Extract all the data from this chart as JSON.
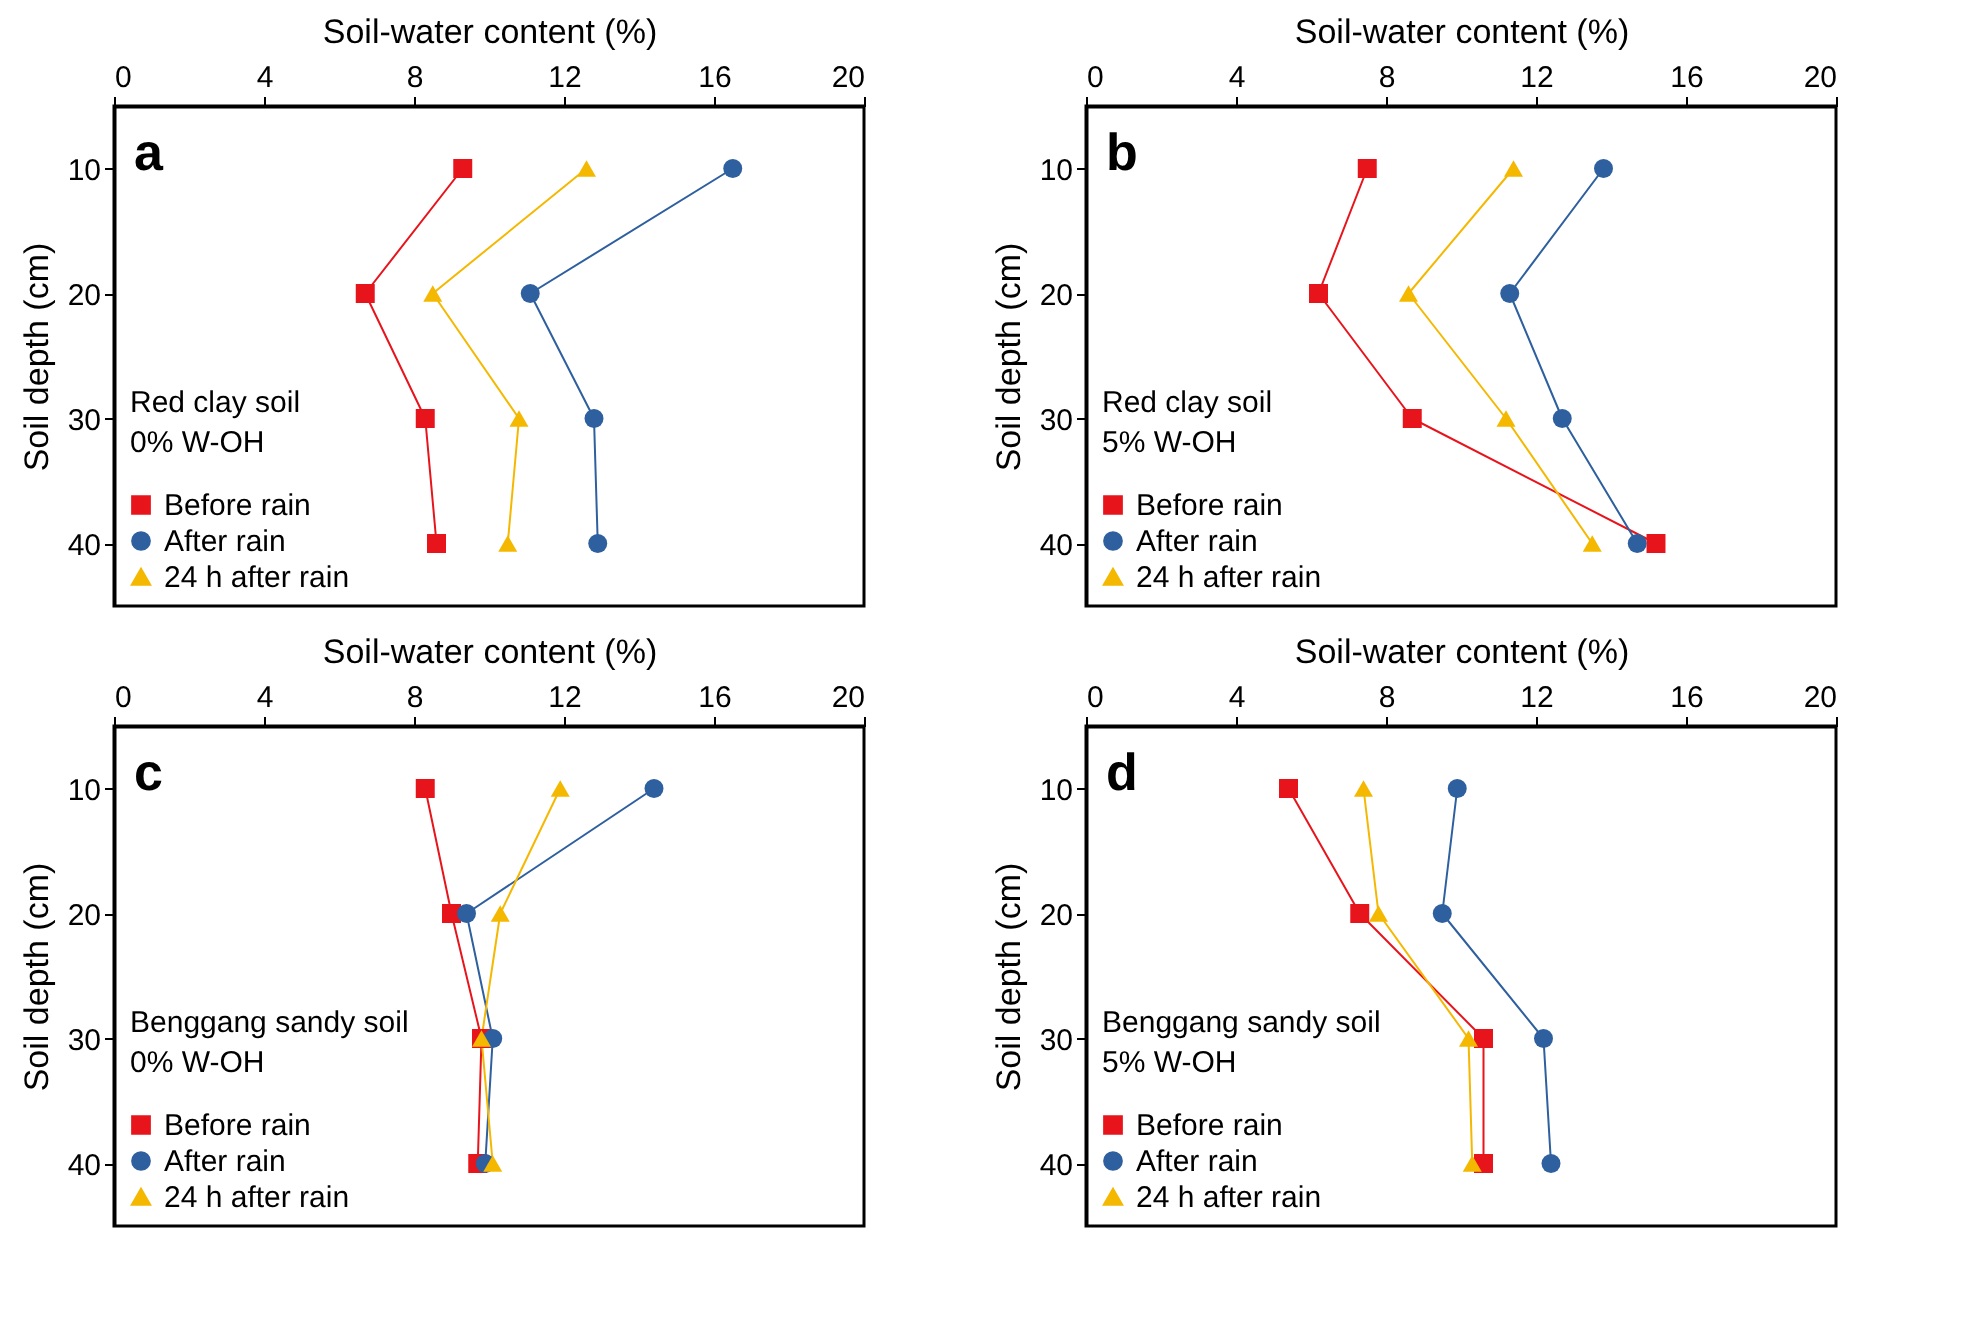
{
  "chart_data": [
    {
      "type": "line",
      "xlabel": "Soil-water content (%)",
      "ylabel": "Soil depth (cm)",
      "annotations": [
        "a",
        "Red clay soil",
        "0% W-OH"
      ],
      "xlim": [
        0,
        20
      ],
      "ylim": [
        45,
        5
      ],
      "xticks": [
        0,
        4,
        8,
        12,
        16,
        20
      ],
      "yticks": [
        10,
        20,
        30,
        40
      ],
      "grid": false,
      "legend": "bottom left",
      "line_style": "solid",
      "series": [
        {
          "name": "Before rain",
          "color": "#e8141c",
          "marker": "square",
          "x": [
            9.3,
            6.7,
            8.3,
            8.6
          ],
          "values": [
            10,
            20,
            30,
            40
          ]
        },
        {
          "name": "After rain",
          "color": "#2e5f9e",
          "marker": "circle",
          "x": [
            16.5,
            11.1,
            12.8,
            12.9
          ],
          "values": [
            10,
            20,
            30,
            40
          ]
        },
        {
          "name": "24 h after rain",
          "color": "#f5b800",
          "marker": "triangle",
          "x": [
            12.6,
            8.5,
            10.8,
            10.5
          ],
          "values": [
            10,
            20,
            30,
            40
          ]
        }
      ]
    },
    {
      "type": "line",
      "xlabel": "Soil-water content (%)",
      "ylabel": "Soil depth (cm)",
      "annotations": [
        "b",
        "Red clay soil",
        "5% W-OH"
      ],
      "xlim": [
        0,
        20
      ],
      "ylim": [
        45,
        5
      ],
      "xticks": [
        0,
        4,
        8,
        12,
        16,
        20
      ],
      "yticks": [
        10,
        20,
        30,
        40
      ],
      "grid": false,
      "legend": "bottom left",
      "line_style": "solid",
      "series": [
        {
          "name": "Before rain",
          "color": "#e8141c",
          "marker": "square",
          "x": [
            7.5,
            6.2,
            8.7,
            15.2
          ],
          "values": [
            10,
            20,
            30,
            40
          ]
        },
        {
          "name": "After rain",
          "color": "#2e5f9e",
          "marker": "circle",
          "x": [
            13.8,
            11.3,
            12.7,
            14.7
          ],
          "values": [
            10,
            20,
            30,
            40
          ]
        },
        {
          "name": "24 h after rain",
          "color": "#f5b800",
          "marker": "triangle",
          "x": [
            11.4,
            8.6,
            11.2,
            13.5
          ],
          "values": [
            10,
            20,
            30,
            40
          ]
        }
      ]
    },
    {
      "type": "line",
      "xlabel": "Soil-water content (%)",
      "ylabel": "Soil depth (cm)",
      "annotations": [
        "c",
        "Benggang sandy soil",
        "0% W-OH"
      ],
      "xlim": [
        0,
        20
      ],
      "ylim": [
        45,
        5
      ],
      "xticks": [
        0,
        4,
        8,
        12,
        16,
        20
      ],
      "yticks": [
        10,
        20,
        30,
        40
      ],
      "grid": false,
      "legend": "bottom left",
      "line_style": "solid",
      "series": [
        {
          "name": "Before rain",
          "color": "#e8141c",
          "marker": "square",
          "x": [
            8.3,
            9.0,
            9.8,
            9.7
          ],
          "values": [
            10,
            20,
            30,
            40
          ]
        },
        {
          "name": "After rain",
          "color": "#2e5f9e",
          "marker": "circle",
          "x": [
            14.4,
            9.4,
            10.1,
            9.9
          ],
          "values": [
            10,
            20,
            30,
            40
          ]
        },
        {
          "name": "24 h after rain",
          "color": "#f5b800",
          "marker": "triangle",
          "x": [
            11.9,
            10.3,
            9.8,
            10.1
          ],
          "values": [
            10,
            20,
            30,
            40
          ]
        }
      ]
    },
    {
      "type": "line",
      "xlabel": "Soil-water content (%)",
      "ylabel": "Soil depth (cm)",
      "annotations": [
        "d",
        "Benggang sandy soil",
        "5% W-OH"
      ],
      "xlim": [
        0,
        20
      ],
      "ylim": [
        45,
        5
      ],
      "xticks": [
        0,
        4,
        8,
        12,
        16,
        20
      ],
      "yticks": [
        10,
        20,
        30,
        40
      ],
      "grid": false,
      "legend": "bottom left",
      "line_style": "solid",
      "series": [
        {
          "name": "Before rain",
          "color": "#e8141c",
          "marker": "square",
          "x": [
            5.4,
            7.3,
            10.6,
            10.6
          ],
          "values": [
            10,
            20,
            30,
            40
          ]
        },
        {
          "name": "After rain",
          "color": "#2e5f9e",
          "marker": "circle",
          "x": [
            9.9,
            9.5,
            12.2,
            12.4
          ],
          "values": [
            10,
            20,
            30,
            40
          ]
        },
        {
          "name": "24 h after rain",
          "color": "#f5b800",
          "marker": "triangle",
          "x": [
            7.4,
            7.8,
            10.2,
            10.3
          ],
          "values": [
            10,
            20,
            30,
            40
          ]
        }
      ]
    }
  ]
}
